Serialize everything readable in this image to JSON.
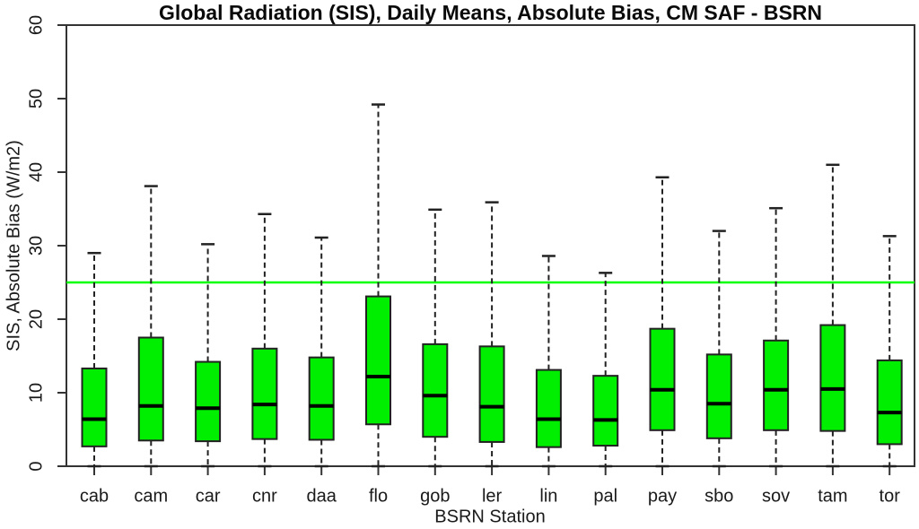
{
  "chart_data": {
    "type": "boxplot",
    "title": "Global Radiation (SIS), Daily Means, Absolute Bias, CM SAF - BSRN",
    "xlabel": "BSRN Station",
    "ylabel": "SIS, Absolute Bias (W/m2)",
    "ylim": [
      0,
      60
    ],
    "yticks": [
      0,
      10,
      20,
      30,
      40,
      50,
      60
    ],
    "grid": false,
    "legend": "none",
    "reference_line": {
      "value": 25,
      "color": "#00ff00"
    },
    "colors": {
      "box_fill": "#00ee00",
      "box_border": "#222222",
      "median": "#000000",
      "whisker": "#222222",
      "axis": "#333333",
      "background": "#ffffff"
    },
    "categories": [
      "cab",
      "cam",
      "car",
      "cnr",
      "daa",
      "flo",
      "gob",
      "ler",
      "lin",
      "pal",
      "pay",
      "sbo",
      "sov",
      "tam",
      "tor"
    ],
    "boxes": [
      {
        "station": "cab",
        "whislo": 0,
        "q1": 2.7,
        "median": 6.4,
        "q3": 13.3,
        "whishi": 29.0
      },
      {
        "station": "cam",
        "whislo": 0,
        "q1": 3.5,
        "median": 8.2,
        "q3": 17.5,
        "whishi": 38.1
      },
      {
        "station": "car",
        "whislo": 0,
        "q1": 3.4,
        "median": 7.9,
        "q3": 14.2,
        "whishi": 30.2
      },
      {
        "station": "cnr",
        "whislo": 0,
        "q1": 3.7,
        "median": 8.4,
        "q3": 16.0,
        "whishi": 34.3
      },
      {
        "station": "daa",
        "whislo": 0,
        "q1": 3.6,
        "median": 8.2,
        "q3": 14.8,
        "whishi": 31.1
      },
      {
        "station": "flo",
        "whislo": 0,
        "q1": 5.7,
        "median": 12.2,
        "q3": 23.1,
        "whishi": 49.2
      },
      {
        "station": "gob",
        "whislo": 0,
        "q1": 4.0,
        "median": 9.6,
        "q3": 16.6,
        "whishi": 34.9
      },
      {
        "station": "ler",
        "whislo": 0,
        "q1": 3.3,
        "median": 8.1,
        "q3": 16.3,
        "whishi": 35.9
      },
      {
        "station": "lin",
        "whislo": 0,
        "q1": 2.6,
        "median": 6.4,
        "q3": 13.1,
        "whishi": 28.6
      },
      {
        "station": "pal",
        "whislo": 0,
        "q1": 2.8,
        "median": 6.3,
        "q3": 12.3,
        "whishi": 26.3
      },
      {
        "station": "pay",
        "whislo": 0,
        "q1": 4.9,
        "median": 10.4,
        "q3": 18.7,
        "whishi": 39.3
      },
      {
        "station": "sbo",
        "whislo": 0,
        "q1": 3.8,
        "median": 8.5,
        "q3": 15.2,
        "whishi": 32.0
      },
      {
        "station": "sov",
        "whislo": 0,
        "q1": 4.9,
        "median": 10.4,
        "q3": 17.1,
        "whishi": 35.1
      },
      {
        "station": "tam",
        "whislo": 0,
        "q1": 4.8,
        "median": 10.5,
        "q3": 19.2,
        "whishi": 41.0
      },
      {
        "station": "tor",
        "whislo": 0,
        "q1": 3.0,
        "median": 7.3,
        "q3": 14.4,
        "whishi": 31.3
      }
    ]
  }
}
